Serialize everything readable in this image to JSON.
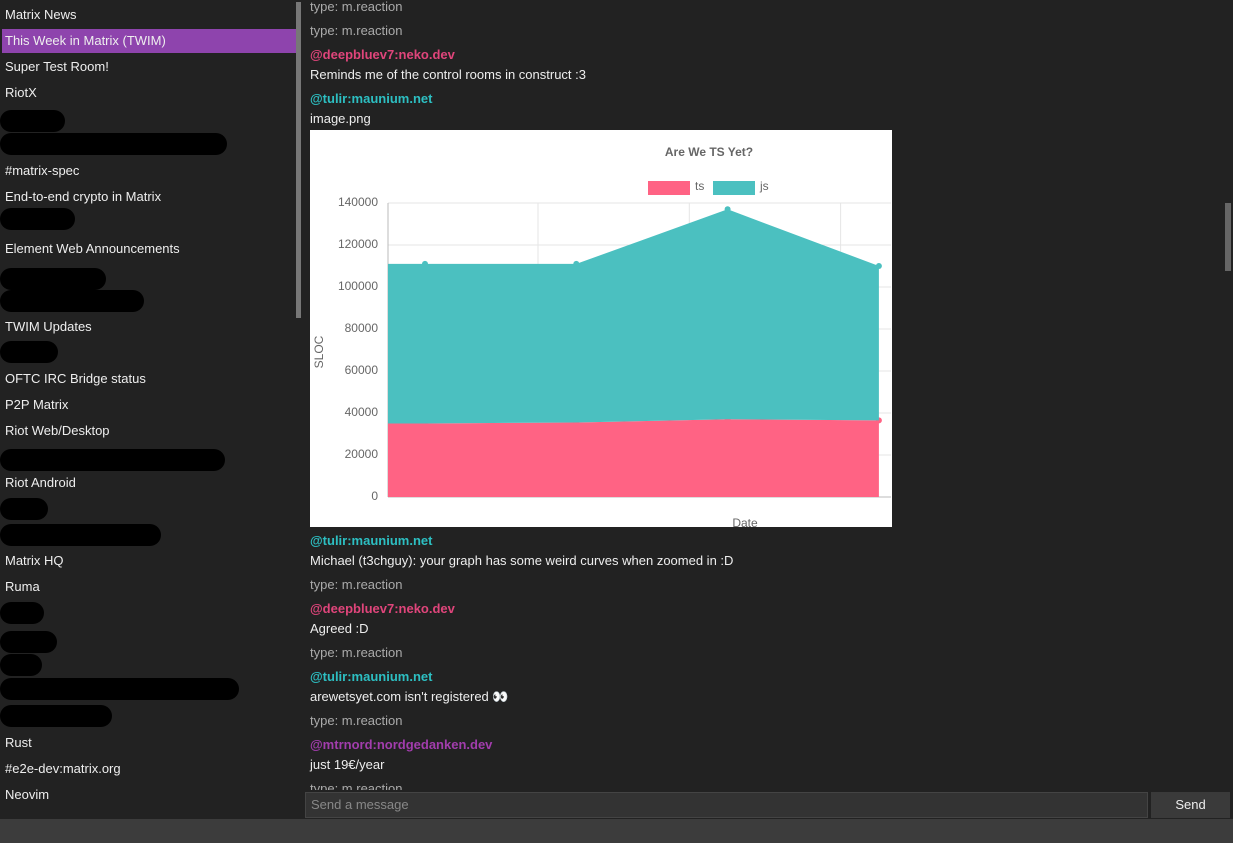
{
  "sidebar": {
    "rooms": [
      "Matrix News",
      "This Week in Matrix (TWIM)",
      "Super Test Room!",
      "RiotX",
      "#matrix-spec",
      "End-to-end crypto in Matrix",
      "Element Web Announcements",
      "TWIM Updates",
      "OFTC IRC Bridge status",
      "P2P Matrix",
      "Riot Web/Desktop",
      "Riot Android",
      "Matrix HQ",
      "Ruma",
      "Rust",
      "#e2e-dev:matrix.org",
      "Neovim"
    ]
  },
  "timeline": {
    "events": [
      {
        "text": "type: m.reaction"
      },
      {
        "text": "type: m.reaction"
      },
      {
        "sender": "@deepbluev7:neko.dev",
        "color": "#e0457b",
        "body": "Reminds me of the control rooms in construct :3"
      },
      {
        "sender": "@tulir:maunium.net",
        "color": "#2dbfc2",
        "body": "image.png",
        "chart": {
          "type": "area",
          "title": "Are We TS Yet?",
          "y_label": "SLOC",
          "x_label": "Date",
          "stacked": true,
          "categories": [
            null,
            null,
            null,
            null
          ],
          "series": [
            {
              "name": "ts",
              "color": "#ff6384",
              "values": [
                35000,
                35500,
                37000,
                36500
              ]
            },
            {
              "name": "js",
              "color": "#4bc0c0",
              "values": [
                76000,
                75500,
                100000,
                73500
              ]
            }
          ],
          "ylim": [
            0,
            140000
          ],
          "yticks": [
            0,
            20000,
            40000,
            60000,
            80000,
            100000,
            120000,
            140000
          ],
          "grid": true
        }
      },
      {
        "sender": "@tulir:maunium.net",
        "color": "#2dbfc2",
        "body": "Michael (t3chguy): your graph has some weird curves when zoomed in :D"
      },
      {
        "text": "type: m.reaction"
      },
      {
        "sender": "@deepbluev7:neko.dev",
        "color": "#e0457b",
        "body": "Agreed :D"
      },
      {
        "text": "type: m.reaction"
      },
      {
        "sender": "@tulir:maunium.net",
        "color": "#2dbfc2",
        "body": "arewetsyet.com isn't registered 👀"
      },
      {
        "text": "type: m.reaction"
      },
      {
        "sender": "@mtrnord:nordgedanken.dev",
        "color": "#a23dad",
        "body": "just 19€/year"
      },
      {
        "text": "type: m.reaction"
      }
    ]
  },
  "composer": {
    "placeholder": "Send a message",
    "button": "Send"
  }
}
